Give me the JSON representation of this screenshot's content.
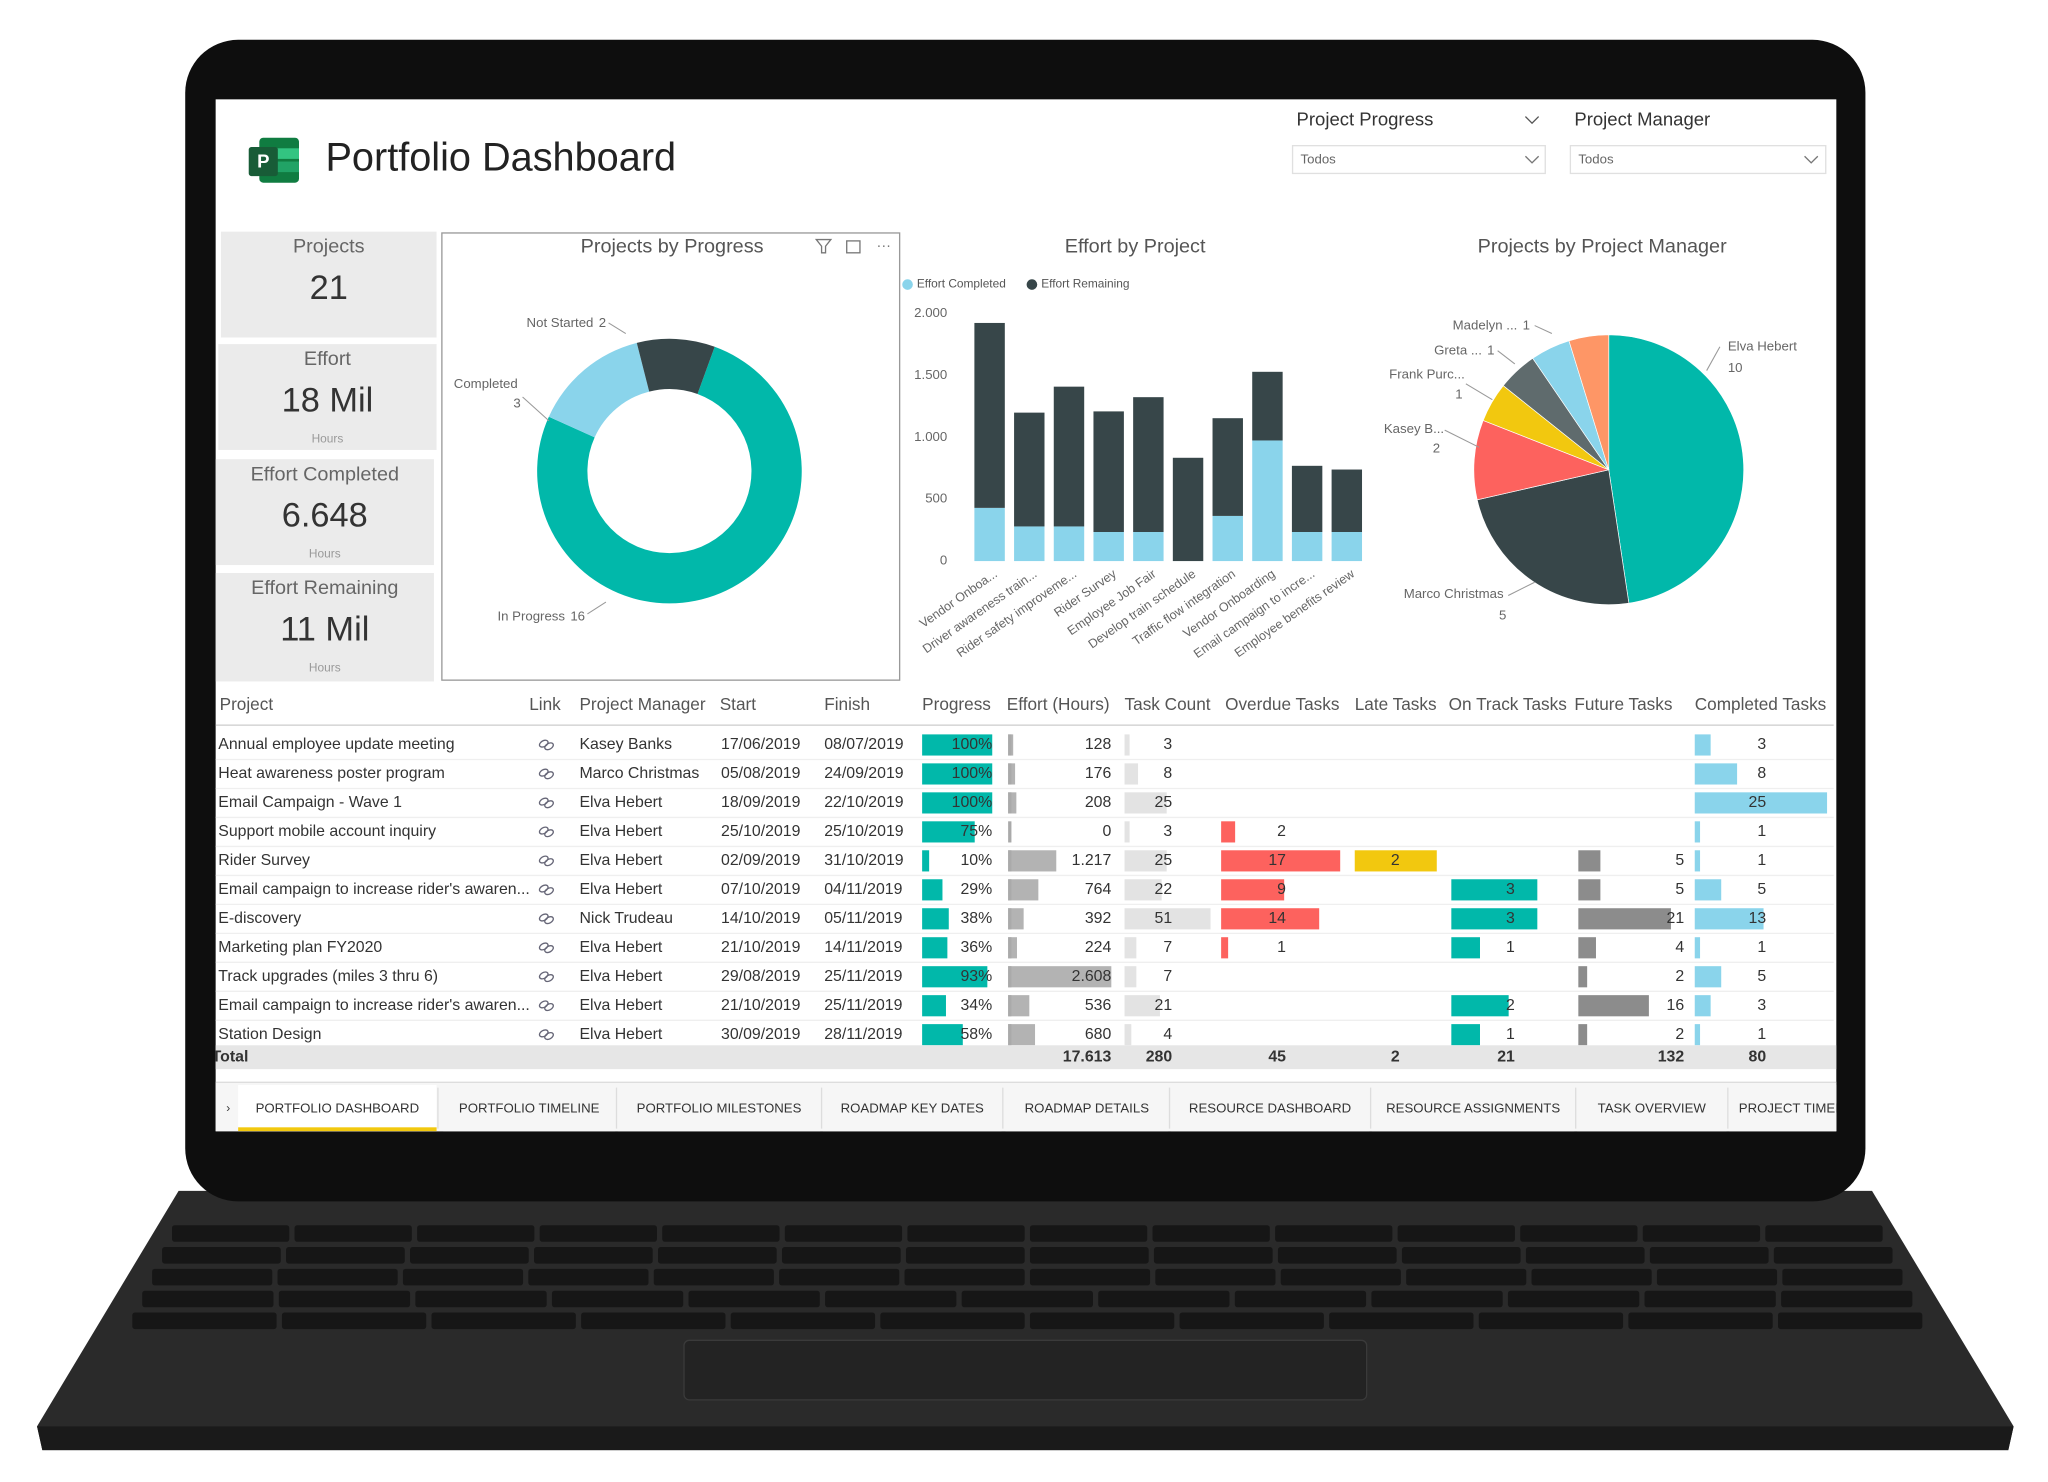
{
  "header": {
    "title": "Portfolio Dashboard"
  },
  "slicers": [
    {
      "label": "Project Progress",
      "value": "Todos"
    },
    {
      "label": "Project Manager",
      "value": "Todos"
    }
  ],
  "kpis": [
    {
      "label": "Projects",
      "value": "21"
    },
    {
      "label": "Effort",
      "value": "18 Mil",
      "unit": "Hours"
    },
    {
      "label": "Effort Completed",
      "value": "6.648",
      "unit": "Hours"
    },
    {
      "label": "Effort Remaining",
      "value": "11 Mil",
      "unit": "Hours"
    }
  ],
  "chart_data": [
    {
      "type": "donut",
      "title": "Projects by Progress",
      "categories": [
        "In Progress",
        "Completed",
        "Not Started"
      ],
      "values": [
        16,
        3,
        2
      ],
      "colors": [
        "#01b8aa",
        "#8ad4eb",
        "#374649"
      ]
    },
    {
      "type": "bar",
      "stacked": true,
      "title": "Effort by Project",
      "categories": [
        "Vendor Onboa...",
        "Driver awareness train...",
        "Rider safety improveme...",
        "Rider Survey",
        "Employee Job Fair",
        "Develop train schedule",
        "Traffic flow integration",
        "Vendor Onboarding",
        "Email campaign to incre...",
        "Employee benefits review"
      ],
      "series": [
        {
          "name": "Effort Completed",
          "color": "#8ad4eb",
          "values": [
            430,
            280,
            280,
            235,
            235,
            0,
            365,
            975,
            235,
            235
          ]
        },
        {
          "name": "Effort Remaining",
          "color": "#374649",
          "values": [
            1495,
            920,
            1130,
            975,
            1090,
            835,
            790,
            555,
            535,
            505
          ]
        }
      ],
      "ylim": [
        0,
        2000
      ],
      "yticks": [
        0,
        500,
        {
          "value": 1000,
          "label": "1.000"
        },
        {
          "value": 1500,
          "label": "1.500"
        },
        {
          "value": 2000,
          "label": "2.000"
        }
      ]
    },
    {
      "type": "pie",
      "title": "Projects by Project Manager",
      "categories": [
        "Elva Hebert",
        "Marco Christmas",
        "Kasey B...",
        "Frank Purc...",
        "Greta ...",
        "Madelyn ...",
        null
      ],
      "values": [
        10,
        5,
        2,
        1,
        1,
        1,
        1
      ],
      "colors": [
        "#01b8aa",
        "#374649",
        "#fd625e",
        "#f2c80f",
        "#5f6b6d",
        "#8ad4eb",
        "#fe9666"
      ]
    }
  ],
  "table": {
    "columns": [
      {
        "name": "Project"
      },
      {
        "name": "Link"
      },
      {
        "name": "Project Manager"
      },
      {
        "name": "Start"
      },
      {
        "name": "Finish"
      },
      {
        "name": "Progress",
        "color": "#01b8aa"
      },
      {
        "name": "Effort (Hours)",
        "color": "#b3b3b3"
      },
      {
        "name": "Task Count",
        "color": "#e3e3e3"
      },
      {
        "name": "Overdue Tasks",
        "color": "#fd625e"
      },
      {
        "name": "Late Tasks",
        "color": "#f2c80f"
      },
      {
        "name": "On Track Tasks",
        "color": "#01b8aa"
      },
      {
        "name": "Future Tasks",
        "color": "#8c8c8c"
      },
      {
        "name": "Completed Tasks",
        "color": "#8ad4eb"
      }
    ],
    "rows": [
      [
        "Annual employee update meeting",
        null,
        "Kasey Banks",
        "17/06/2019",
        "08/07/2019",
        {
          "value": 100,
          "label": "100%"
        },
        128,
        3,
        null,
        null,
        null,
        null,
        3
      ],
      [
        "Heat awareness poster program",
        null,
        "Marco Christmas",
        "05/08/2019",
        "24/09/2019",
        {
          "value": 100,
          "label": "100%"
        },
        176,
        8,
        null,
        null,
        null,
        null,
        8
      ],
      [
        "Email Campaign - Wave 1",
        null,
        "Elva Hebert",
        "18/09/2019",
        "22/10/2019",
        {
          "value": 100,
          "label": "100%"
        },
        208,
        25,
        null,
        null,
        null,
        null,
        25
      ],
      [
        "Support mobile account inquiry",
        null,
        "Elva Hebert",
        "25/10/2019",
        "25/10/2019",
        {
          "value": 75,
          "label": "75%"
        },
        0,
        3,
        2,
        null,
        null,
        null,
        1
      ],
      [
        "Rider Survey",
        null,
        "Elva Hebert",
        "02/09/2019",
        "31/10/2019",
        {
          "value": 10,
          "label": "10%"
        },
        {
          "value": 1217,
          "label": "1.217"
        },
        25,
        17,
        2,
        null,
        5,
        1
      ],
      [
        "Email campaign to increase rider's awaren...",
        null,
        "Elva Hebert",
        "07/10/2019",
        "04/11/2019",
        {
          "value": 29,
          "label": "29%"
        },
        764,
        22,
        9,
        null,
        3,
        5,
        5
      ],
      [
        "E-discovery",
        null,
        "Nick Trudeau",
        "14/10/2019",
        "05/11/2019",
        {
          "value": 38,
          "label": "38%"
        },
        392,
        51,
        14,
        null,
        3,
        21,
        13
      ],
      [
        "Marketing plan FY2020",
        null,
        "Elva Hebert",
        "21/10/2019",
        "14/11/2019",
        {
          "value": 36,
          "label": "36%"
        },
        224,
        7,
        1,
        null,
        1,
        4,
        1
      ],
      [
        "Track upgrades (miles 3 thru 6)",
        null,
        "Elva Hebert",
        "29/08/2019",
        "25/11/2019",
        {
          "value": 93,
          "label": "93%"
        },
        {
          "value": 2608,
          "label": "2.608"
        },
        7,
        null,
        null,
        null,
        2,
        5
      ],
      [
        "Email campaign to increase rider's awaren...",
        null,
        "Elva Hebert",
        "21/10/2019",
        "25/11/2019",
        {
          "value": 34,
          "label": "34%"
        },
        536,
        21,
        null,
        null,
        2,
        16,
        3
      ],
      [
        "Station Design",
        null,
        "Elva Hebert",
        "30/09/2019",
        "28/11/2019",
        {
          "value": 58,
          "label": "58%"
        },
        680,
        4,
        null,
        null,
        1,
        2,
        1
      ]
    ],
    "total": [
      "Total",
      null,
      null,
      null,
      null,
      null,
      {
        "value": 17613,
        "label": "17.613"
      },
      280,
      45,
      2,
      21,
      132,
      80
    ]
  },
  "tabs": [
    "PORTFOLIO DASHBOARD",
    "PORTFOLIO TIMELINE",
    "PORTFOLIO MILESTONES",
    "ROADMAP KEY DATES",
    "ROADMAP DETAILS",
    "RESOURCE DASHBOARD",
    "RESOURCE ASSIGNMENTS",
    "TASK OVERVIEW",
    "PROJECT TIMELIN"
  ]
}
